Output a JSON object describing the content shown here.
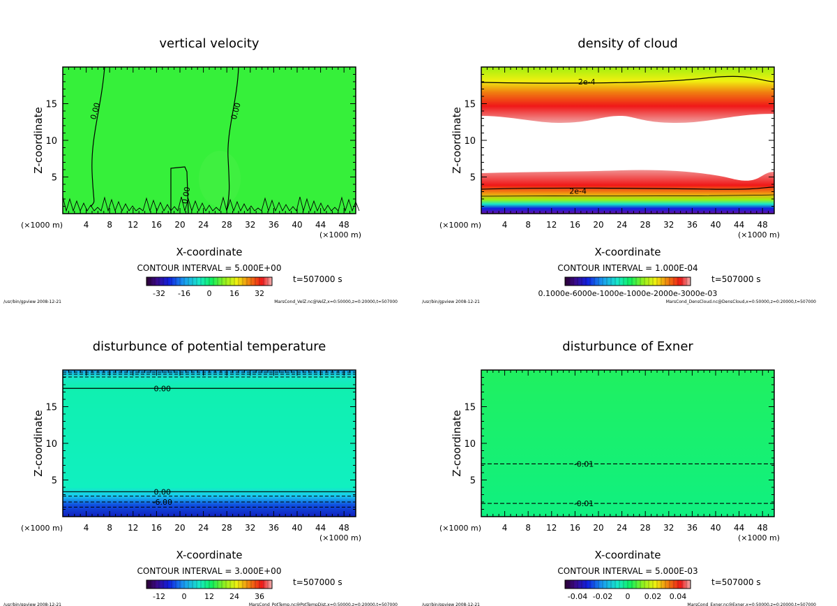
{
  "common": {
    "xlabel": "X-coordinate",
    "ylabel": "Z-coordinate",
    "x_unit_label": "(×1000 m)",
    "x_ticks": [
      4,
      8,
      12,
      16,
      20,
      24,
      28,
      32,
      36,
      40,
      44,
      48
    ],
    "y_ticks": [
      5,
      10,
      15
    ],
    "time_label": "t=507000 s",
    "footer_left": "/usr/bin/gpview  2008-12-21",
    "xlim": [
      0,
      50
    ],
    "ylim": [
      0,
      20
    ]
  },
  "chart_data": [
    {
      "id": "velz",
      "type": "heatmap",
      "title": "vertical velocity",
      "contour_interval": "CONTOUR INTERVAL = 5.000E+00",
      "colorbar_ticks": [
        "-32",
        "-16",
        "0",
        "16",
        "32"
      ],
      "colorbar_range": [
        -40,
        40
      ],
      "footer_right": "MarsCond_VelZ.nc@VelZ,x=0:50000,z=0:20000,t=507000",
      "contour_labels": [
        {
          "text": "0.00",
          "x": 5.5,
          "y": 14
        },
        {
          "text": "0.00",
          "x": 29.5,
          "y": 14
        },
        {
          "text": "0.00",
          "x": 21.0,
          "y": 2.5
        }
      ]
    },
    {
      "id": "cloud",
      "type": "heatmap",
      "title": "density of cloud",
      "contour_interval": "CONTOUR INTERVAL = 1.000E-04",
      "colorbar_ticks_text": "0.1000e-6000e-1000e-1000e-2000e-3000e-03",
      "footer_right": "MarsCond_DensCloud.nc@DensCloud,x=0:50000,z=0:20000,t=507000",
      "contour_labels": [
        {
          "text": "2e-4",
          "x": 18,
          "y": 18
        },
        {
          "text": "2e-4",
          "x": 16.5,
          "y": 3.1
        }
      ]
    },
    {
      "id": "pottemp",
      "type": "heatmap",
      "title": "disturbunce of potential temperature",
      "contour_interval": "CONTOUR INTERVAL = 3.000E+00",
      "colorbar_ticks": [
        "-12",
        "0",
        "12",
        "24",
        "36"
      ],
      "colorbar_range": [
        -18,
        42
      ],
      "footer_right": "MarsCond_PotTemp.nc@PotTempDist,x=0:50000,z=0:20000,t=507000",
      "contour_labels": [
        {
          "text": "0.00",
          "x": 17,
          "y": 17.5
        },
        {
          "text": "0.00",
          "x": 17,
          "y": 3.4
        },
        {
          "text": "-6.00",
          "x": 17,
          "y": 2.0
        }
      ]
    },
    {
      "id": "exner",
      "type": "heatmap",
      "title": "disturbunce of Exner",
      "contour_interval": "CONTOUR INTERVAL = 5.000E-03",
      "colorbar_ticks": [
        "-0.04",
        "-0.02",
        "0",
        "0.02",
        "0.04"
      ],
      "colorbar_range": [
        -0.05,
        0.05
      ],
      "footer_right": "MarsCond_Exner.nc@Exner,x=0:50000,z=0:20000,t=507000",
      "contour_labels": [
        {
          "text": "-0.01",
          "x": 17.5,
          "y": 7.2
        },
        {
          "text": "-0.01",
          "x": 17.5,
          "y": 1.8
        }
      ]
    }
  ]
}
